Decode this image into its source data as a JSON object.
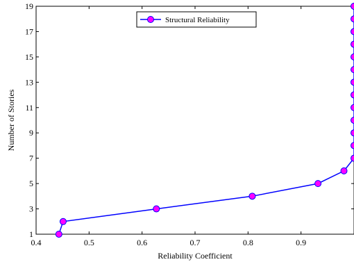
{
  "chart_data": {
    "type": "line",
    "xlabel": "Reliability Coefficient",
    "ylabel": "Number of Stories",
    "xlim": [
      0.4,
      1.0
    ],
    "ylim": [
      1,
      19
    ],
    "x_ticks": [
      0.4,
      0.5,
      0.6,
      0.7,
      0.8,
      0.9
    ],
    "x_tick_labels": [
      "0.4",
      "0.5",
      "0.6",
      "0.7",
      "0.8",
      "0.9"
    ],
    "y_ticks": [
      1,
      3,
      5,
      7,
      9,
      11,
      13,
      15,
      17,
      19
    ],
    "y_tick_labels": [
      "1",
      "3",
      "5",
      "7",
      "9",
      "11",
      "13",
      "15",
      "17",
      "19"
    ],
    "grid": false,
    "legend_position": "top-center",
    "series": [
      {
        "name": "Structural Reliability",
        "line_color": "#0000ff",
        "marker_color": "#ff00ff",
        "x": [
          0.443,
          0.451,
          0.627,
          0.808,
          0.932,
          0.981,
          1.0,
          1.0,
          1.0,
          1.0,
          1.0,
          1.0,
          1.0,
          1.0,
          1.0,
          1.0,
          1.0,
          1.0,
          1.0
        ],
        "y": [
          1,
          2,
          3,
          4,
          5,
          6,
          7,
          8,
          9,
          10,
          11,
          12,
          13,
          14,
          15,
          16,
          17,
          18,
          19
        ]
      }
    ]
  }
}
